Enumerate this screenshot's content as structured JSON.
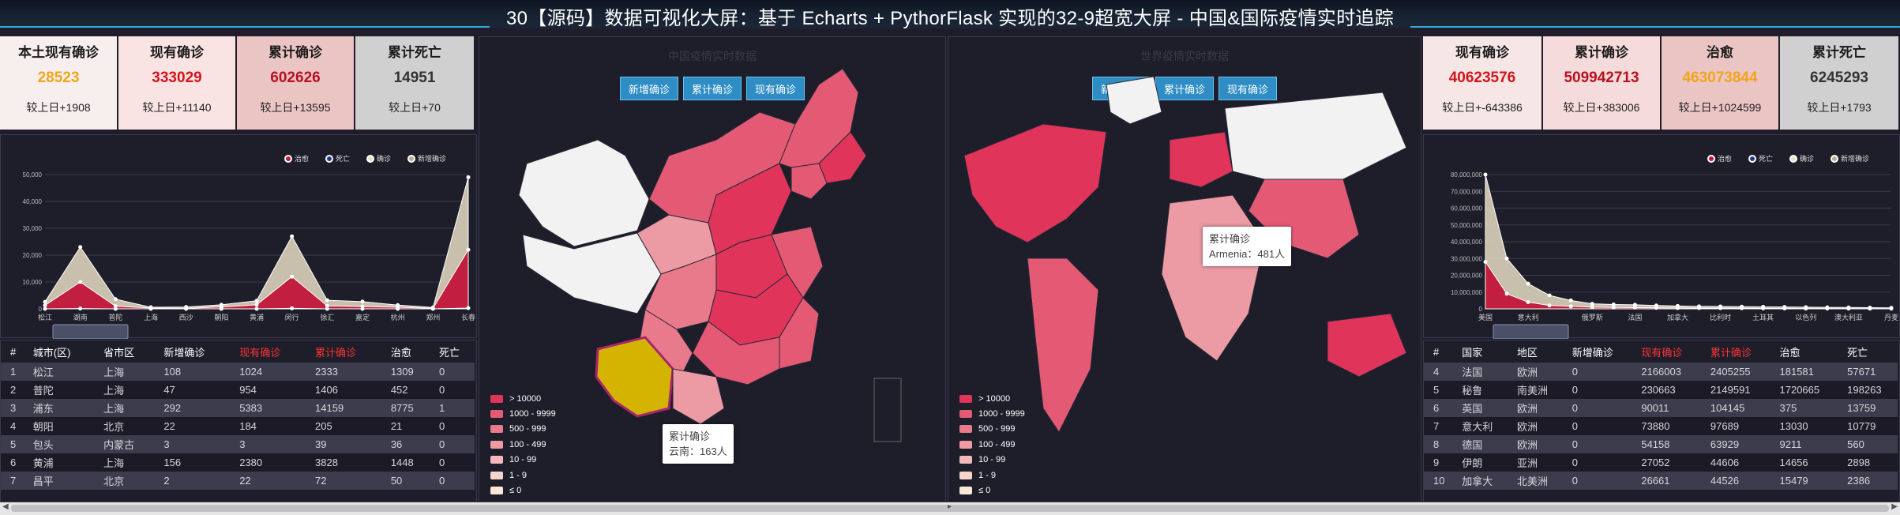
{
  "header": {
    "title": "30【源码】数据可视化大屏：基于 Echarts + PythorFlask 实现的32-9超宽大屏 - 中国&国际疫情实时追踪"
  },
  "cn_stats": [
    {
      "label": "本土现有确诊",
      "value": "28523",
      "delta": "较上日+1908",
      "bg": "#f7eeee",
      "color": "#f2a51a"
    },
    {
      "label": "现有确诊",
      "value": "333029",
      "delta": "较上日+11140",
      "bg": "#f9e3e3",
      "color": "#d4141c"
    },
    {
      "label": "累计确诊",
      "value": "602626",
      "delta": "较上日+13595",
      "bg": "#ebc4c4",
      "color": "#b8121e"
    },
    {
      "label": "累计死亡",
      "value": "14951",
      "delta": "较上日+70",
      "bg": "#d1d0d0",
      "color": "#333333"
    }
  ],
  "world_stats": [
    {
      "label": "现有确诊",
      "value": "40623576",
      "delta": "较上日+-643386",
      "bg": "#f6e6e6",
      "color": "#d4141c"
    },
    {
      "label": "累计确诊",
      "value": "509942713",
      "delta": "较上日+383006",
      "bg": "#f5dbdb",
      "color": "#b8121e"
    },
    {
      "label": "治愈",
      "value": "463073844",
      "delta": "较上日+1024599",
      "bg": "#ebc4c4",
      "color": "#f2a51a"
    },
    {
      "label": "累计死亡",
      "value": "6245293",
      "delta": "较上日+1793",
      "bg": "#d1d0d0",
      "color": "#333333"
    }
  ],
  "cn_map": {
    "title": "中国疫情实时数据",
    "buttons": [
      "新增确诊",
      "累计确诊",
      "现有确诊"
    ],
    "tooltip_title": "累计确诊",
    "tooltip_value": "云南：163人"
  },
  "world_map": {
    "title": "世界疫情实时数据",
    "buttons": [
      "新增确诊",
      "累计确诊",
      "现有确诊"
    ],
    "tooltip_title": "累计确诊",
    "tooltip_value": "Armenia：481人"
  },
  "legend": [
    {
      "label": "> 10000",
      "color": "#e0345a"
    },
    {
      "label": "1000 - 9999",
      "color": "#e45a75"
    },
    {
      "label": "500 - 999",
      "color": "#e87a8c"
    },
    {
      "label": "100 - 499",
      "color": "#ee9ba4"
    },
    {
      "label": "10 - 99",
      "color": "#f2b9bb"
    },
    {
      "label": "1 - 9",
      "color": "#f6d3cd"
    },
    {
      "label": "≤ 0",
      "color": "#f8e8d8"
    }
  ],
  "series_legend": [
    {
      "name": "治愈",
      "color": "#c2153a"
    },
    {
      "name": "死亡",
      "color": "#233a8c"
    },
    {
      "name": "确诊",
      "color": "#e8e0c8"
    },
    {
      "name": "新增确诊",
      "color": "#b8ad8a"
    }
  ],
  "chart_data": [
    {
      "type": "area",
      "categories": [
        "松江",
        "湖南",
        "普陀",
        "上海",
        "西沙",
        "朝阳",
        "黄浦",
        "闵行",
        "徐汇",
        "嘉定",
        "杭州",
        "郑州",
        "长春"
      ],
      "ylim": [
        0,
        50000
      ],
      "yticks": [
        "0",
        "10,000",
        "20,000",
        "30,000",
        "40,000",
        "50,000"
      ],
      "series": [
        {
          "name": "确诊",
          "values": [
            2600,
            23000,
            3600,
            600,
            700,
            1500,
            3000,
            27000,
            3200,
            2700,
            1400,
            500,
            49000
          ]
        },
        {
          "name": "治愈",
          "values": [
            1300,
            10000,
            1000,
            300,
            200,
            700,
            1500,
            12000,
            1100,
            900,
            600,
            200,
            22000
          ]
        },
        {
          "name": "死亡",
          "values": [
            0,
            100,
            0,
            0,
            0,
            0,
            0,
            200,
            0,
            0,
            0,
            0,
            300
          ]
        }
      ]
    },
    {
      "type": "area",
      "categories": [
        "美国",
        "",
        "意大利",
        "",
        "",
        "俄罗斯",
        "",
        "法国",
        "",
        "加拿大",
        "",
        "比利时",
        "",
        "土耳其",
        "",
        "以色列",
        "",
        "澳大利亚",
        "",
        "丹麦"
      ],
      "ylim": [
        0,
        80000000
      ],
      "yticks": [
        "0",
        "10,000,000",
        "20,000,000",
        "30,000,000",
        "40,000,000",
        "50,000,000",
        "60,000,000",
        "70,000,000",
        "80,000,000"
      ],
      "series": [
        {
          "name": "确诊",
          "values": [
            80000000,
            30000000,
            15000000,
            8000000,
            5000000,
            3000000,
            2600000,
            2400000,
            2000000,
            1700000,
            1500000,
            1400000,
            1300000,
            1200000,
            1100000,
            1000000,
            900000,
            800000,
            700000,
            600000
          ]
        },
        {
          "name": "治愈",
          "values": [
            28000000,
            9000000,
            4000000,
            2000000,
            1500000,
            1000000,
            800000,
            700000,
            600000,
            500000,
            450000,
            400000,
            350000,
            300000,
            250000,
            200000,
            180000,
            150000,
            120000,
            100000
          ]
        }
      ]
    }
  ],
  "cn_table": {
    "headers": [
      "#",
      "城市(区)",
      "省市区",
      "新增确诊",
      "现有确诊",
      "累计确诊",
      "治愈",
      "死亡"
    ],
    "rows": [
      [
        "1",
        "松江",
        "上海",
        "108",
        "1024",
        "2333",
        "1309",
        "0"
      ],
      [
        "2",
        "普陀",
        "上海",
        "47",
        "954",
        "1406",
        "452",
        "0"
      ],
      [
        "3",
        "浦东",
        "上海",
        "292",
        "5383",
        "14159",
        "8775",
        "1"
      ],
      [
        "4",
        "朝阳",
        "北京",
        "22",
        "184",
        "205",
        "21",
        "0"
      ],
      [
        "5",
        "包头",
        "内蒙古",
        "3",
        "3",
        "39",
        "36",
        "0"
      ],
      [
        "6",
        "黄浦",
        "上海",
        "156",
        "2380",
        "3828",
        "1448",
        "0"
      ],
      [
        "7",
        "昌平",
        "北京",
        "2",
        "22",
        "72",
        "50",
        "0"
      ]
    ]
  },
  "world_table": {
    "headers": [
      "#",
      "国家",
      "地区",
      "新增确诊",
      "现有确诊",
      "累计确诊",
      "治愈",
      "死亡"
    ],
    "rows": [
      [
        "4",
        "法国",
        "欧洲",
        "0",
        "2166003",
        "2405255",
        "181581",
        "57671"
      ],
      [
        "5",
        "秘鲁",
        "南美洲",
        "0",
        "230663",
        "2149591",
        "1720665",
        "198263"
      ],
      [
        "6",
        "英国",
        "欧洲",
        "0",
        "90011",
        "104145",
        "375",
        "13759"
      ],
      [
        "7",
        "意大利",
        "欧洲",
        "0",
        "73880",
        "97689",
        "13030",
        "10779"
      ],
      [
        "8",
        "德国",
        "欧洲",
        "0",
        "54158",
        "63929",
        "9211",
        "560"
      ],
      [
        "9",
        "伊朗",
        "亚洲",
        "0",
        "27052",
        "44606",
        "14656",
        "2898"
      ],
      [
        "10",
        "加拿大",
        "北美洲",
        "0",
        "26661",
        "44526",
        "15479",
        "2386"
      ]
    ]
  }
}
